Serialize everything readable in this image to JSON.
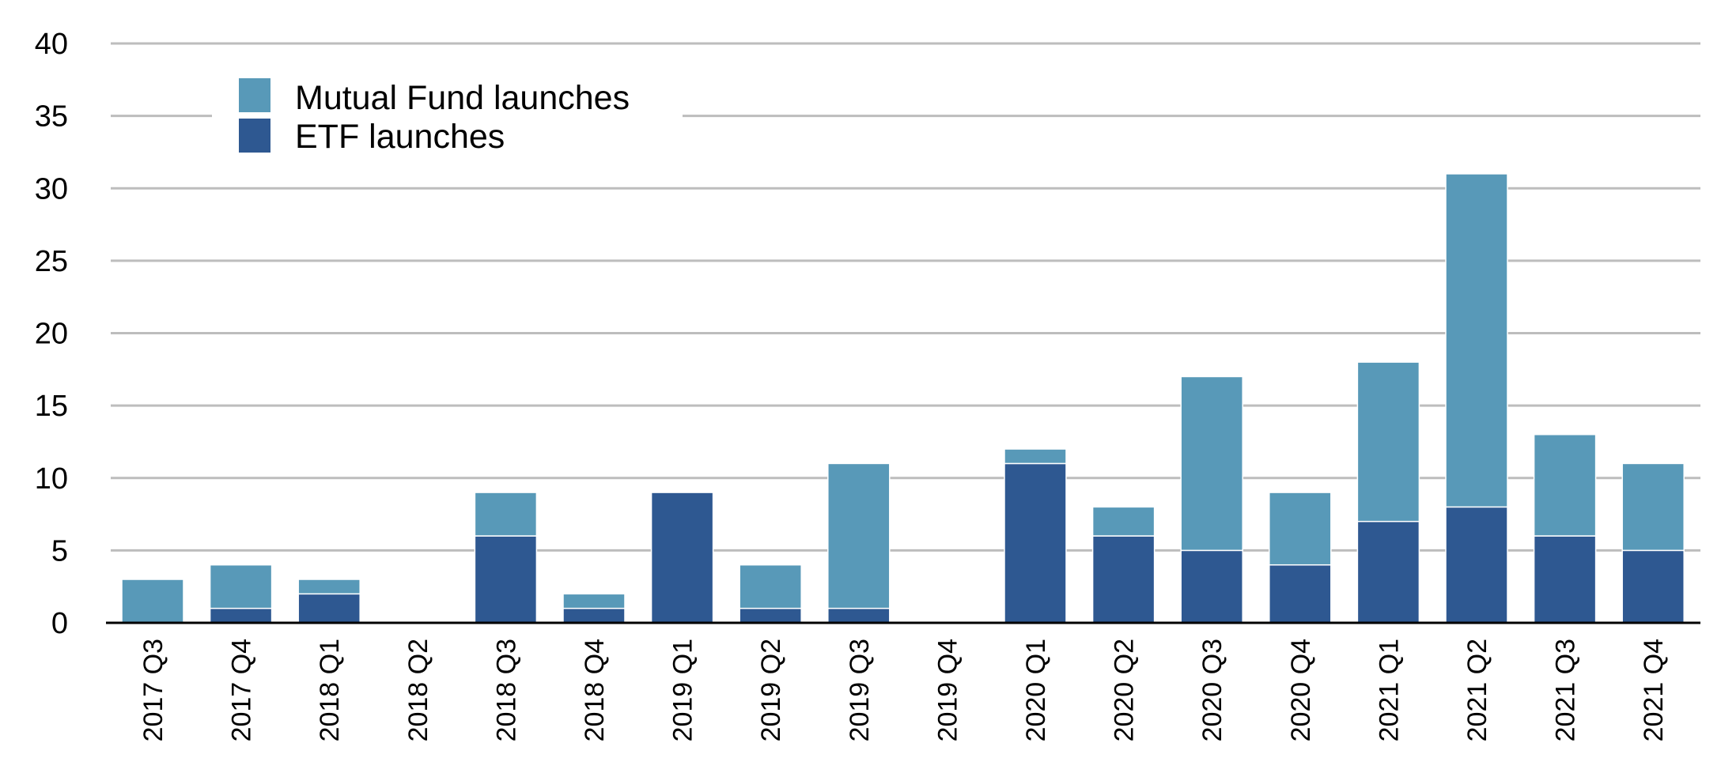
{
  "chart_data": {
    "type": "bar",
    "stacked": true,
    "categories": [
      "2017 Q3",
      "2017 Q4",
      "2018 Q1",
      "2018 Q2",
      "2018 Q3",
      "2018 Q4",
      "2019 Q1",
      "2019 Q2",
      "2019 Q3",
      "2019 Q4",
      "2020 Q1",
      "2020 Q2",
      "2020 Q3",
      "2020 Q4",
      "2021 Q1",
      "2021 Q2",
      "2021 Q3",
      "2021 Q4"
    ],
    "series": [
      {
        "name": "ETF launches",
        "color": "#2e5891",
        "values": [
          0,
          1,
          2,
          0,
          6,
          1,
          9,
          1,
          1,
          0,
          11,
          6,
          5,
          4,
          7,
          8,
          6,
          5
        ]
      },
      {
        "name": "Mutual Fund launches",
        "color": "#5899b8",
        "values": [
          3,
          3,
          1,
          0,
          3,
          1,
          0,
          3,
          10,
          0,
          1,
          2,
          12,
          5,
          11,
          23,
          7,
          6
        ]
      }
    ],
    "ylim": [
      0,
      40
    ],
    "yticks": [
      0,
      5,
      10,
      15,
      20,
      25,
      30,
      35,
      40
    ],
    "grid": true,
    "legend": {
      "placement": "top-left",
      "entries": [
        "Mutual Fund launches",
        "ETF launches"
      ]
    }
  }
}
